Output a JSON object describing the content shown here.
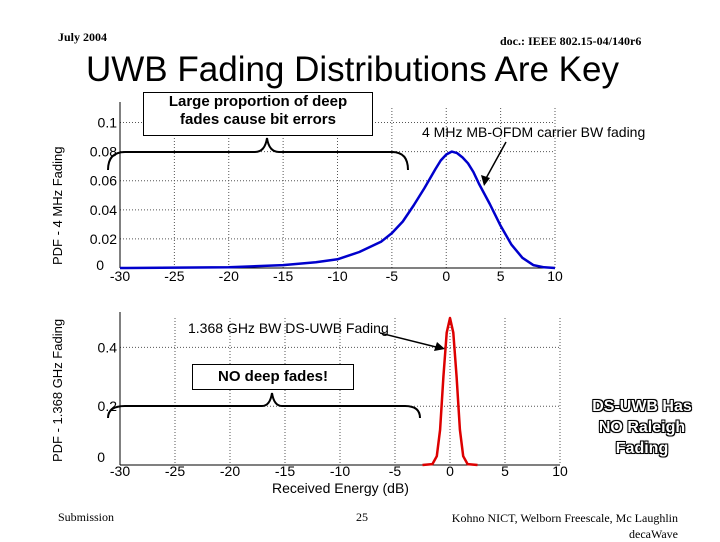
{
  "header": {
    "date": "July 2004",
    "doc": "doc.: IEEE 802.15-04/140r6"
  },
  "title": "UWB Fading Distributions Are Key",
  "footer": {
    "left": "Submission",
    "page": "25",
    "authors_line1": "Kohno NICT, Welborn Freescale, Mc Laughlin",
    "authors_line2": "decaWave"
  },
  "callouts": {
    "deep_fades_line1": "Large proportion of deep",
    "deep_fades_line2": "fades cause bit errors",
    "mb_ofdm": "4 MHz MB-OFDM carrier BW fading",
    "ds_uwb": "1.368 GHz BW DS-UWB Fading",
    "no_deep_fades": "NO deep fades!",
    "ds_no_raleigh_1": "DS-UWB Has",
    "ds_no_raleigh_2": "NO Raleigh",
    "ds_no_raleigh_3": "Fading"
  },
  "colors": {
    "top_series": "#0000cc",
    "bottom_series": "#dd0000",
    "grid": "#555555"
  },
  "chart_data": [
    {
      "type": "line",
      "title": "",
      "ylabel": "PDF - 4 MHz Fading",
      "xlabel": "",
      "xlim": [
        -30,
        10
      ],
      "ylim": [
        0,
        0.11
      ],
      "x_ticks": [
        "-30",
        "-25",
        "-20",
        "-15",
        "-10",
        "-5",
        "0",
        "5",
        "10"
      ],
      "y_ticks": [
        "0",
        "0.02",
        "0.04",
        "0.06",
        "0.08",
        "0.1"
      ],
      "grid": true,
      "series": [
        {
          "name": "4 MHz MB-OFDM carrier BW fading",
          "color": "#0000cc",
          "x": [
            -30,
            -20,
            -15,
            -12,
            -10,
            -8,
            -6,
            -5,
            -4,
            -3,
            -2,
            -1,
            -0.5,
            0,
            0.5,
            1,
            1.5,
            2,
            2.5,
            3,
            4,
            5,
            6,
            7,
            8,
            9,
            10
          ],
          "y": [
            0,
            0.0005,
            0.002,
            0.004,
            0.006,
            0.011,
            0.018,
            0.024,
            0.032,
            0.043,
            0.055,
            0.068,
            0.074,
            0.078,
            0.08,
            0.079,
            0.076,
            0.072,
            0.066,
            0.058,
            0.044,
            0.029,
            0.016,
            0.007,
            0.002,
            0.0005,
            0
          ]
        }
      ]
    },
    {
      "type": "line",
      "title": "",
      "ylabel": "PDF - 1.368 GHz Fading",
      "xlabel": "Received Energy (dB)",
      "xlim": [
        -30,
        10
      ],
      "ylim": [
        0,
        0.5
      ],
      "x_ticks": [
        "-30",
        "-25",
        "-20",
        "-15",
        "-10",
        "-5",
        "0",
        "5",
        "10"
      ],
      "y_ticks": [
        "0",
        "0.2",
        "0.4"
      ],
      "grid": true,
      "series": [
        {
          "name": "1.368 GHz BW DS-UWB Fading",
          "color": "#dd0000",
          "x": [
            -2.5,
            -1.6,
            -1.2,
            -0.9,
            -0.6,
            -0.3,
            0,
            0.3,
            0.6,
            0.9,
            1.2,
            1.6,
            2.5
          ],
          "y": [
            0,
            0.003,
            0.03,
            0.12,
            0.3,
            0.45,
            0.5,
            0.45,
            0.3,
            0.12,
            0.03,
            0.003,
            0
          ]
        }
      ]
    }
  ]
}
